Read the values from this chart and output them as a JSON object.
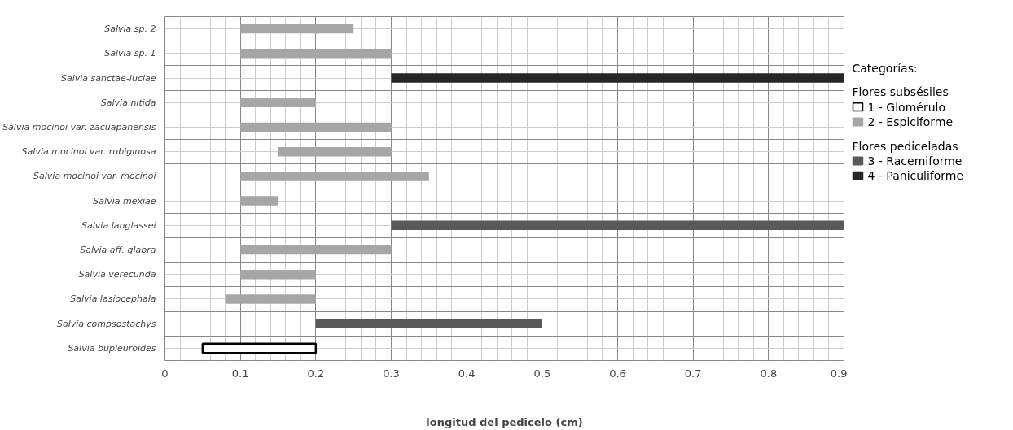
{
  "chart_data": {
    "type": "bar",
    "orientation": "horizontal",
    "xlabel": "longitud del pedicelo (cm)",
    "legend_title": "Categorías:",
    "categories": [
      "Salvia sp. 2",
      "Salvia sp. 1",
      "Salvia sanctae-luciae",
      "Salvia nitida",
      "Salvia mocinoi var. zacuapanensis",
      "Salvia mocinoi var. rubiginosa",
      "Salvia mocinoi var. mocinoi",
      "Salvia mexiae",
      "Salvia langlassei",
      "Salvia aff. glabra",
      "Salvia verecunda",
      "Salvia lasiocephala",
      "Salvia compsostachys",
      "Salvia bupleuroides"
    ],
    "series": [
      {
        "name": "1 - Glomérulo",
        "color": "#ffffff",
        "values": [
          null,
          null,
          null,
          null,
          null,
          null,
          null,
          null,
          null,
          null,
          null,
          null,
          null,
          0.15
        ],
        "base": [
          null,
          null,
          null,
          null,
          null,
          null,
          null,
          null,
          null,
          null,
          null,
          null,
          null,
          0.05
        ]
      },
      {
        "name": "2 - Espiciforme",
        "color": "#a6a6a6",
        "values": [
          0.15,
          0.2,
          null,
          0.1,
          0.2,
          0.15,
          0.25,
          0.05,
          null,
          0.2,
          0.1,
          0.12,
          null,
          null
        ],
        "base": [
          0.1,
          0.1,
          null,
          0.1,
          0.1,
          0.15,
          0.1,
          0.1,
          null,
          0.1,
          0.1,
          0.08,
          null,
          null
        ]
      },
      {
        "name": "3 - Racemiforme",
        "color": "#595959",
        "values": [
          null,
          null,
          null,
          null,
          null,
          null,
          null,
          null,
          0.6,
          null,
          null,
          null,
          0.3,
          null
        ],
        "base": [
          null,
          null,
          null,
          null,
          null,
          null,
          null,
          null,
          0.3,
          null,
          null,
          null,
          0.2,
          null
        ]
      },
      {
        "name": "4 - Paniculiforme",
        "color": "#262626",
        "values": [
          null,
          null,
          0.6,
          null,
          null,
          null,
          null,
          null,
          null,
          null,
          null,
          null,
          null,
          null
        ],
        "base": [
          null,
          null,
          0.3,
          null,
          null,
          null,
          null,
          null,
          null,
          null,
          null,
          null,
          null,
          null
        ]
      }
    ],
    "annotations": [
      "Flores subsésiles",
      "Flores pediceladas"
    ],
    "xlim": [
      0,
      0.9
    ],
    "xticks": [
      0,
      0.1,
      0.2,
      0.3,
      0.4,
      0.5,
      0.6,
      0.7,
      0.8,
      0.9
    ],
    "grid": true,
    "legend": "right"
  }
}
